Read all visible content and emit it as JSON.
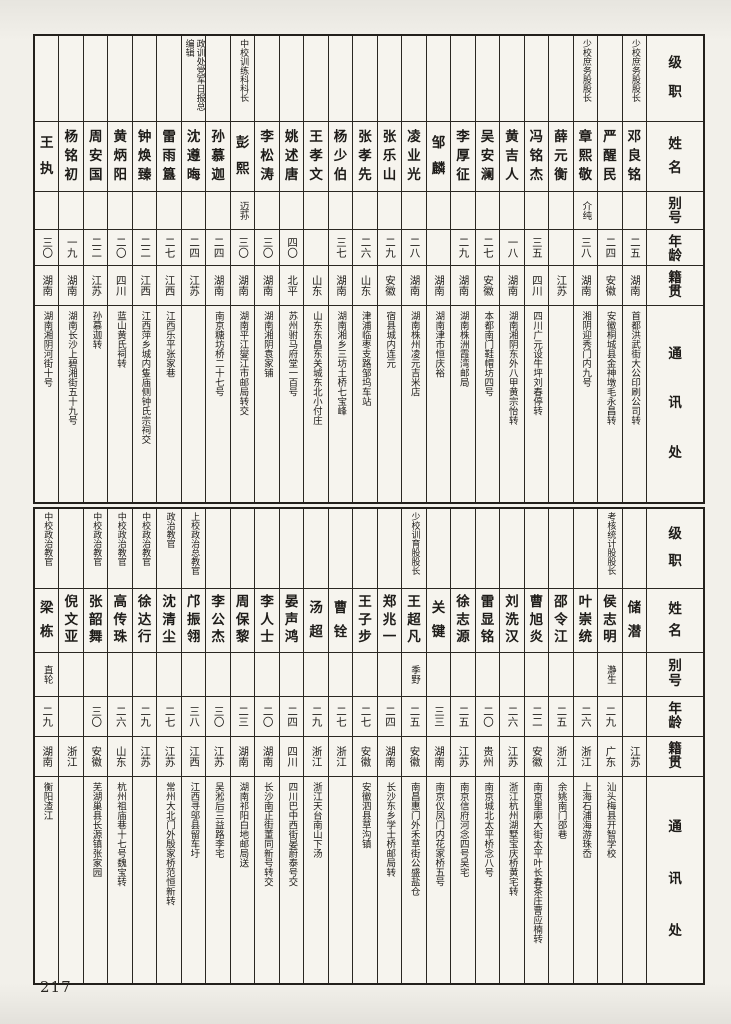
{
  "page": {
    "number": "217"
  },
  "colors": {
    "paper": "#f2f0ea",
    "ink": "#1d1b18",
    "line": "#2a2722"
  },
  "row_headers": [
    "级职",
    "姓名",
    "别号",
    "年龄",
    "籍贯",
    "通讯处"
  ],
  "sections": [
    {
      "name": "top",
      "people": [
        {
          "rank": "",
          "name": "王执",
          "alias": "",
          "age": "三〇",
          "origin": "湖南",
          "address": "湖南湘阴河街十号"
        },
        {
          "rank": "",
          "name": "杨铭初",
          "alias": "",
          "age": "一九",
          "origin": "湖南",
          "address": "湖南长沙上碧湘街五十九号"
        },
        {
          "rank": "",
          "name": "周安国",
          "alias": "",
          "age": "二二",
          "origin": "江苏",
          "address": "孙慕迦转"
        },
        {
          "rank": "",
          "name": "黄炳阳",
          "alias": "",
          "age": "二〇",
          "origin": "四川",
          "address": "蓝山黄氏祠转"
        },
        {
          "rank": "",
          "name": "钟焕臻",
          "alias": "",
          "age": "二二",
          "origin": "江西",
          "address": "江西萍乡城内隻庙侧钟氏宗祠交"
        },
        {
          "rank": "",
          "name": "雷雨簋",
          "alias": "",
          "age": "二七",
          "origin": "江西",
          "address": "江西乐平张家巷"
        },
        {
          "rank": "政训处党军日报总编辑",
          "name": "沈遵晦",
          "alias": "",
          "age": "二四",
          "origin": "江苏",
          "address": ""
        },
        {
          "rank": "",
          "name": "孙慕迦",
          "alias": "",
          "age": "二四",
          "origin": "湖南",
          "address": "南京糖坊桥二十七号"
        },
        {
          "rank": "中校训练科科长",
          "name": "彭熙",
          "alias": "迈荪",
          "age": "三〇",
          "origin": "湖南",
          "address": "湖南平江燮江市邮局转交"
        },
        {
          "rank": "",
          "name": "李松涛",
          "alias": "",
          "age": "三〇",
          "origin": "湖南",
          "address": "湖南湘阴袁家铺"
        },
        {
          "rank": "",
          "name": "姚述唐",
          "alias": "",
          "age": "四〇",
          "origin": "北平",
          "address": "苏州驸马府堂一百号"
        },
        {
          "rank": "",
          "name": "王孝文",
          "alias": "",
          "age": "",
          "origin": "山东",
          "address": "山东东昌东关城东北小付庄"
        },
        {
          "rank": "",
          "name": "杨少伯",
          "alias": "",
          "age": "三七",
          "origin": "湖南",
          "address": "湖南湘乡三坊土桥七宝峰"
        },
        {
          "rank": "",
          "name": "张孝先",
          "alias": "",
          "age": "二六",
          "origin": "山东",
          "address": "津浦临枣支路邹坞车站"
        },
        {
          "rank": "",
          "name": "张乐山",
          "alias": "",
          "age": "二九",
          "origin": "安徽",
          "address": "宿县城内连元"
        },
        {
          "rank": "",
          "name": "凌业光",
          "alias": "",
          "age": "二八",
          "origin": "湖南",
          "address": "湖南株州凌元吉米店"
        },
        {
          "rank": "",
          "name": "邹麟",
          "alias": "",
          "age": "",
          "origin": "湖南",
          "address": "湖南津市恒庆裕"
        },
        {
          "rank": "",
          "name": "李厚征",
          "alias": "",
          "age": "二九",
          "origin": "湖南",
          "address": "湖南株洲霞湾邮局"
        },
        {
          "rank": "",
          "name": "吴安澜",
          "alias": "",
          "age": "二七",
          "origin": "安徽",
          "address": "本都南门鞋帽坊四号"
        },
        {
          "rank": "",
          "name": "黄吉人",
          "alias": "",
          "age": "一八",
          "origin": "湖南",
          "address": "湖南湘阴东外八甲黄宗怡转"
        },
        {
          "rank": "",
          "name": "冯铭杰",
          "alias": "",
          "age": "三五",
          "origin": "四川",
          "address": "四川广元设牛坪刘春停转"
        },
        {
          "rank": "",
          "name": "薛元衡",
          "alias": "",
          "age": "",
          "origin": "江苏",
          "address": ""
        },
        {
          "rank": "少校庶务股股长",
          "name": "章熙敬",
          "alias": "介纯",
          "age": "三八",
          "origin": "湖南",
          "address": "湘阴迎秀门内九号"
        },
        {
          "rank": "",
          "name": "严醒民",
          "alias": "",
          "age": "二四",
          "origin": "安徽",
          "address": "安徽桐城县金神墩毛永昌转"
        },
        {
          "rank": "少校庶务股股长",
          "name": "邓良铭",
          "alias": "",
          "age": "二五",
          "origin": "湖南",
          "address": "首都洪武街大公印刷公司转"
        }
      ]
    },
    {
      "name": "bottom",
      "people": [
        {
          "rank": "中校政治教官",
          "name": "梁栋",
          "alias": "直轮",
          "age": "二九",
          "origin": "湖南",
          "address": "衡阳渣江"
        },
        {
          "rank": "",
          "name": "倪文亚",
          "alias": "",
          "age": "",
          "origin": "浙江",
          "address": ""
        },
        {
          "rank": "中校政治教官",
          "name": "张韶舞",
          "alias": "",
          "age": "三〇",
          "origin": "安徽",
          "address": "芜湖巢县长源镇张家园"
        },
        {
          "rank": "中校政治教官",
          "name": "高传珠",
          "alias": "",
          "age": "二六",
          "origin": "山东",
          "address": "杭州祖庙巷十七号魏宝转"
        },
        {
          "rank": "中校政治教官",
          "name": "徐达行",
          "alias": "",
          "age": "二九",
          "origin": "江苏",
          "address": ""
        },
        {
          "rank": "政治教官",
          "name": "沈清尘",
          "alias": "",
          "age": "二七",
          "origin": "江苏",
          "address": "常州大北门外殷家桥范恒新转"
        },
        {
          "rank": "上校政治总教官",
          "name": "邝振翎",
          "alias": "",
          "age": "三八",
          "origin": "江西",
          "address": "江西寻邬县留车圩"
        },
        {
          "rank": "",
          "name": "李公杰",
          "alias": "",
          "age": "三〇",
          "origin": "江苏",
          "address": "吴淞后三益路李宅"
        },
        {
          "rank": "",
          "name": "周保黎",
          "alias": "",
          "age": "二三",
          "origin": "湖南",
          "address": "湖南祁阳白地邮局送"
        },
        {
          "rank": "",
          "name": "李人士",
          "alias": "",
          "age": "二〇",
          "origin": "湖南",
          "address": "长沙南正街董同新号转交"
        },
        {
          "rank": "",
          "name": "晏声鸿",
          "alias": "",
          "age": "二四",
          "origin": "四川",
          "address": "四川巴中西街晏蔚泰号交"
        },
        {
          "rank": "",
          "name": "汤超",
          "alias": "",
          "age": "二九",
          "origin": "浙江",
          "address": "浙江天台南山下汤"
        },
        {
          "rank": "",
          "name": "曹铨",
          "alias": "",
          "age": "二七",
          "origin": "浙江",
          "address": ""
        },
        {
          "rank": "",
          "name": "王子步",
          "alias": "",
          "age": "二七",
          "origin": "安徽",
          "address": "安徽泗县草沟镇"
        },
        {
          "rank": "",
          "name": "郑兆一",
          "alias": "",
          "age": "二四",
          "origin": "湖南",
          "address": "长沙东乡学士桥邮局转"
        },
        {
          "rank": "少校训育股股长",
          "name": "王超凡",
          "alias": "季野",
          "age": "二五",
          "origin": "安徽",
          "address": "南昌惠门外禾草街公盛盐仓"
        },
        {
          "rank": "",
          "name": "关键",
          "alias": "",
          "age": "三三",
          "origin": "湖南",
          "address": "南京仪凤门内花家桥五号"
        },
        {
          "rank": "",
          "name": "徐志源",
          "alias": "",
          "age": "二五",
          "origin": "江苏",
          "address": "南京信府河念四号吴宅"
        },
        {
          "rank": "",
          "name": "雷显铭",
          "alias": "",
          "age": "二〇",
          "origin": "贵州",
          "address": "南京城北太平桥念八号"
        },
        {
          "rank": "",
          "name": "刘洗汉",
          "alias": "",
          "age": "二六",
          "origin": "江苏",
          "address": "浙江杭州湖墅宝庆桥黄宅转"
        },
        {
          "rank": "",
          "name": "曹旭炎",
          "alias": "",
          "age": "二二",
          "origin": "安徽",
          "address": "南京里廓大街太平叶长春茶庄曹应楠转"
        },
        {
          "rank": "",
          "name": "邵令江",
          "alias": "",
          "age": "二五",
          "origin": "浙江",
          "address": "余姚南门邵巷"
        },
        {
          "rank": "",
          "name": "叶崇统",
          "alias": "",
          "age": "二六",
          "origin": "浙江",
          "address": "上海石浦海游珠岙"
        },
        {
          "rank": "考核统计股股长",
          "name": "侯志明",
          "alias": "瀞生",
          "age": "二九",
          "origin": "广东",
          "address": "汕头梅县开智学校"
        },
        {
          "rank": "",
          "name": "储潜",
          "alias": "",
          "age": "",
          "origin": "江苏",
          "address": ""
        }
      ]
    }
  ]
}
